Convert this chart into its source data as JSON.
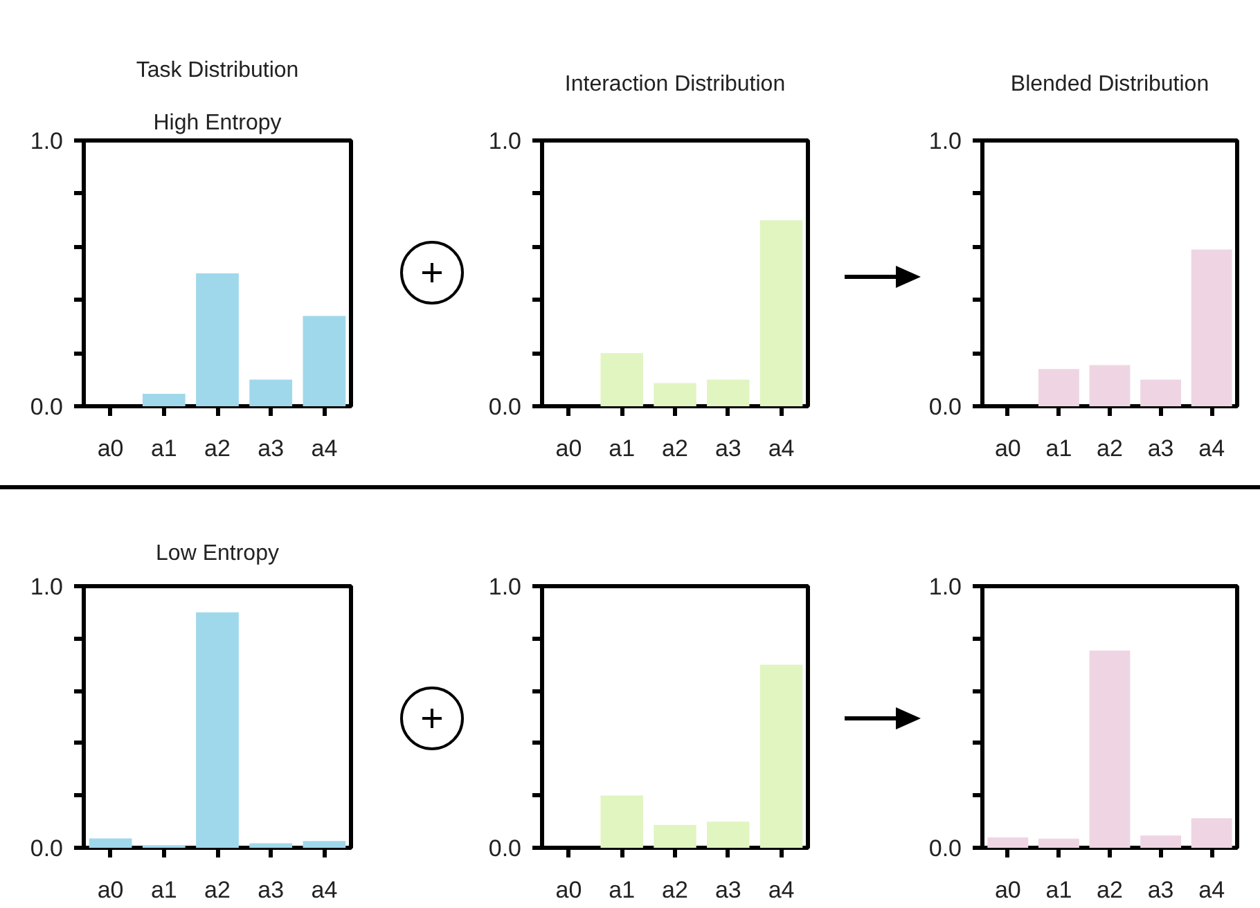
{
  "chart_data": [
    {
      "type": "bar",
      "title": "Task Distribution",
      "subtitle": "High Entropy",
      "categories": [
        "a0",
        "a1",
        "a2",
        "a3",
        "a4"
      ],
      "values": [
        0.0,
        0.047,
        0.5,
        0.1,
        0.34
      ],
      "color": "#a0d8eb",
      "ylim": [
        0,
        1
      ],
      "yticks": [
        {
          "value": 0,
          "label": "0.0"
        },
        {
          "value": 0.2,
          "label": null
        },
        {
          "value": 0.4,
          "label": null
        },
        {
          "value": 0.6,
          "label": null
        },
        {
          "value": 0.8,
          "label": null
        },
        {
          "value": 1,
          "label": "1.0"
        }
      ]
    },
    {
      "type": "bar",
      "title": "Interaction Distribution",
      "categories": [
        "a0",
        "a1",
        "a2",
        "a3",
        "a4"
      ],
      "values": [
        0.0,
        0.2,
        0.087,
        0.1,
        0.7
      ],
      "color": "#e0f5c0",
      "ylim": [
        0,
        1
      ],
      "yticks": [
        {
          "value": 0,
          "label": "0.0"
        },
        {
          "value": 0.2,
          "label": null
        },
        {
          "value": 0.4,
          "label": null
        },
        {
          "value": 0.6,
          "label": null
        },
        {
          "value": 0.8,
          "label": null
        },
        {
          "value": 1,
          "label": "1.0"
        }
      ]
    },
    {
      "type": "bar",
      "title": "Blended Distribution",
      "categories": [
        "a0",
        "a1",
        "a2",
        "a3",
        "a4"
      ],
      "values": [
        0.0,
        0.14,
        0.155,
        0.1,
        0.59
      ],
      "color": "#efd5e3",
      "ylim": [
        0,
        1
      ],
      "yticks": [
        {
          "value": 0,
          "label": "0.0"
        },
        {
          "value": 0.2,
          "label": null
        },
        {
          "value": 0.4,
          "label": null
        },
        {
          "value": 0.6,
          "label": null
        },
        {
          "value": 0.8,
          "label": null
        },
        {
          "value": 1,
          "label": "1.0"
        }
      ]
    },
    {
      "type": "bar",
      "title": "Low Entropy",
      "categories": [
        "a0",
        "a1",
        "a2",
        "a3",
        "a4"
      ],
      "values": [
        0.036,
        0.01,
        0.9,
        0.017,
        0.026
      ],
      "color": "#a0d8eb",
      "ylim": [
        0,
        1
      ],
      "yticks": [
        {
          "value": 0,
          "label": "0.0"
        },
        {
          "value": 0.2,
          "label": null
        },
        {
          "value": 0.4,
          "label": null
        },
        {
          "value": 0.6,
          "label": null
        },
        {
          "value": 0.8,
          "label": null
        },
        {
          "value": 1,
          "label": "1.0"
        }
      ]
    },
    {
      "type": "bar",
      "categories": [
        "a0",
        "a1",
        "a2",
        "a3",
        "a4"
      ],
      "values": [
        0.0,
        0.2,
        0.087,
        0.1,
        0.7
      ],
      "color": "#e0f5c0",
      "ylim": [
        0,
        1
      ],
      "yticks": [
        {
          "value": 0,
          "label": "0.0"
        },
        {
          "value": 0.2,
          "label": null
        },
        {
          "value": 0.4,
          "label": null
        },
        {
          "value": 0.6,
          "label": null
        },
        {
          "value": 0.8,
          "label": null
        },
        {
          "value": 1,
          "label": "1.0"
        }
      ]
    },
    {
      "type": "bar",
      "categories": [
        "a0",
        "a1",
        "a2",
        "a3",
        "a4"
      ],
      "values": [
        0.04,
        0.035,
        0.754,
        0.047,
        0.113
      ],
      "color": "#efd5e3",
      "ylim": [
        0,
        1
      ],
      "yticks": [
        {
          "value": 0,
          "label": "0.0"
        },
        {
          "value": 0.2,
          "label": null
        },
        {
          "value": 0.4,
          "label": null
        },
        {
          "value": 0.6,
          "label": null
        },
        {
          "value": 0.8,
          "label": null
        },
        {
          "value": 1,
          "label": "1.0"
        }
      ]
    }
  ]
}
